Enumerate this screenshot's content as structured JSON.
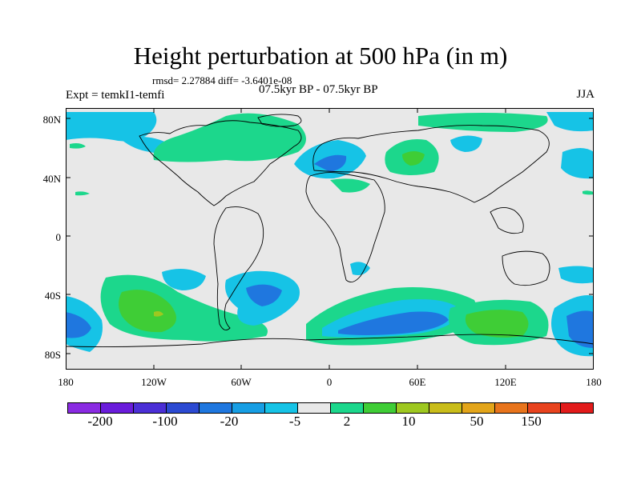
{
  "title": "Height perturbation at 500 hPa (in m)",
  "stats_text": "rmsd= 2.27884 diff= -3.6401e-08",
  "experiment_text": "Expt = temkI1-temfi",
  "period_text": "07.5kyr BP - 07.5kyr BP",
  "season_text": "JJA",
  "lat_ticks": [
    "80N",
    "40N",
    "0",
    "40S",
    "80S"
  ],
  "lon_ticks": [
    "180",
    "120W",
    "60W",
    "0",
    "60E",
    "120E",
    "180"
  ],
  "colors": {
    "background": "#e8e8e8",
    "levels": [
      "#8a2be2",
      "#6a1cdb",
      "#4b2fd6",
      "#2c4ad2",
      "#1f77df",
      "#179ee4",
      "#16c3e6",
      "#e8e8e8",
      "#1cd78c",
      "#3fcd36",
      "#9ec820",
      "#c9bd1a",
      "#e3a51a",
      "#e8741c",
      "#e8431e",
      "#e21b1b"
    ]
  },
  "colorbar_labels": [
    "-200",
    "-100",
    "-20",
    "-5",
    "2",
    "10",
    "50",
    "150"
  ]
}
